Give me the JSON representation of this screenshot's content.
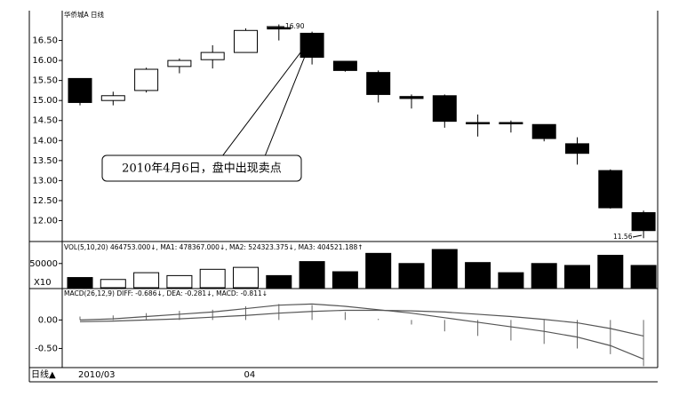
{
  "chart_data": [
    {
      "type": "candlestick",
      "title": "华侨城A 日线",
      "period_label": "日线▲",
      "categories": [
        "2010/03",
        null,
        null,
        null,
        null,
        "04",
        null,
        null,
        null,
        null,
        null,
        null,
        null,
        null,
        null,
        null,
        null,
        null
      ],
      "open": [
        15.55,
        15.0,
        15.25,
        15.85,
        16.02,
        16.2,
        16.82,
        16.68,
        15.98,
        15.7,
        15.1,
        15.12,
        14.45,
        14.45,
        14.4,
        13.92,
        13.25,
        12.2
      ],
      "high": [
        15.55,
        15.22,
        15.82,
        16.05,
        16.38,
        16.8,
        16.9,
        16.72,
        15.98,
        15.75,
        15.15,
        15.15,
        14.65,
        14.5,
        14.4,
        14.08,
        13.28,
        12.25
      ],
      "low": [
        14.88,
        14.88,
        15.2,
        15.68,
        15.8,
        16.2,
        16.5,
        15.9,
        15.72,
        14.95,
        14.8,
        14.32,
        14.1,
        14.2,
        13.98,
        13.4,
        12.3,
        11.56
      ],
      "close": [
        14.95,
        15.12,
        15.78,
        16.0,
        16.2,
        16.75,
        16.8,
        16.08,
        15.75,
        15.15,
        15.05,
        14.48,
        14.43,
        14.44,
        14.05,
        13.68,
        12.32,
        11.75
      ],
      "up_color": "#ffffff",
      "down_color": "#000000",
      "ylim": [
        11.5,
        17.2
      ],
      "yticks": [
        {
          "value": 12,
          "label": "12.00"
        },
        {
          "value": 12.5,
          "label": "12.50"
        },
        {
          "value": 13,
          "label": "13.00"
        },
        {
          "value": 13.5,
          "label": "13.50"
        },
        {
          "value": 14,
          "label": "14.00"
        },
        {
          "value": 14.5,
          "label": "14.50"
        },
        {
          "value": 15,
          "label": "15.00"
        },
        {
          "value": 15.5,
          "label": "15.50"
        },
        {
          "value": 16,
          "label": "16.00"
        },
        {
          "value": 16.5,
          "label": "16.50"
        }
      ],
      "high_label": "16.90",
      "low_label": "11.56",
      "annotation": "2010年4月6日，盘中出现卖点"
    },
    {
      "type": "bar",
      "title": "VOL(5,10,20) 464753.000↓, MA1: 478367.000↓, MA2: 524323.375↓, MA3: 404521.188↑",
      "unit_label": "X10",
      "values": [
        21000,
        17000,
        31000,
        25000,
        38000,
        42000,
        25000,
        54000,
        33000,
        71000,
        50000,
        79000,
        52000,
        31000,
        50000,
        46000,
        67000,
        46000
      ],
      "ylim": [
        0,
        90000
      ],
      "yticks": [
        50000
      ]
    },
    {
      "type": "macd",
      "title": "MACD(26,12,9) DIFF: -0.686↓, DEA: -0.281↓, MACD: -0.811↓",
      "series": [
        {
          "color": "#555555",
          "values": [
            0,
            0.02,
            0.06,
            0.1,
            0.14,
            0.2,
            0.26,
            0.28,
            0.24,
            0.18,
            0.12,
            0.04,
            -0.04,
            -0.12,
            -0.2,
            -0.3,
            -0.45,
            -0.686
          ]
        },
        {
          "color": "#555555",
          "values": [
            -0.03,
            -0.02,
            0,
            0.02,
            0.05,
            0.08,
            0.12,
            0.15,
            0.17,
            0.17,
            0.16,
            0.14,
            0.1,
            0.06,
            0.01,
            -0.05,
            -0.15,
            -0.281
          ]
        }
      ],
      "macd": [
        0.06,
        0.08,
        0.12,
        0.16,
        0.18,
        0.24,
        0.28,
        0.26,
        0.14,
        0.02,
        -0.08,
        -0.2,
        -0.28,
        -0.36,
        -0.42,
        -0.5,
        -0.6,
        -0.811
      ],
      "ylim": [
        -0.82,
        0.52
      ],
      "yticks": [
        {
          "value": 0,
          "label": "0.00"
        },
        {
          "value": -0.5,
          "label": "-0.50"
        }
      ]
    }
  ]
}
